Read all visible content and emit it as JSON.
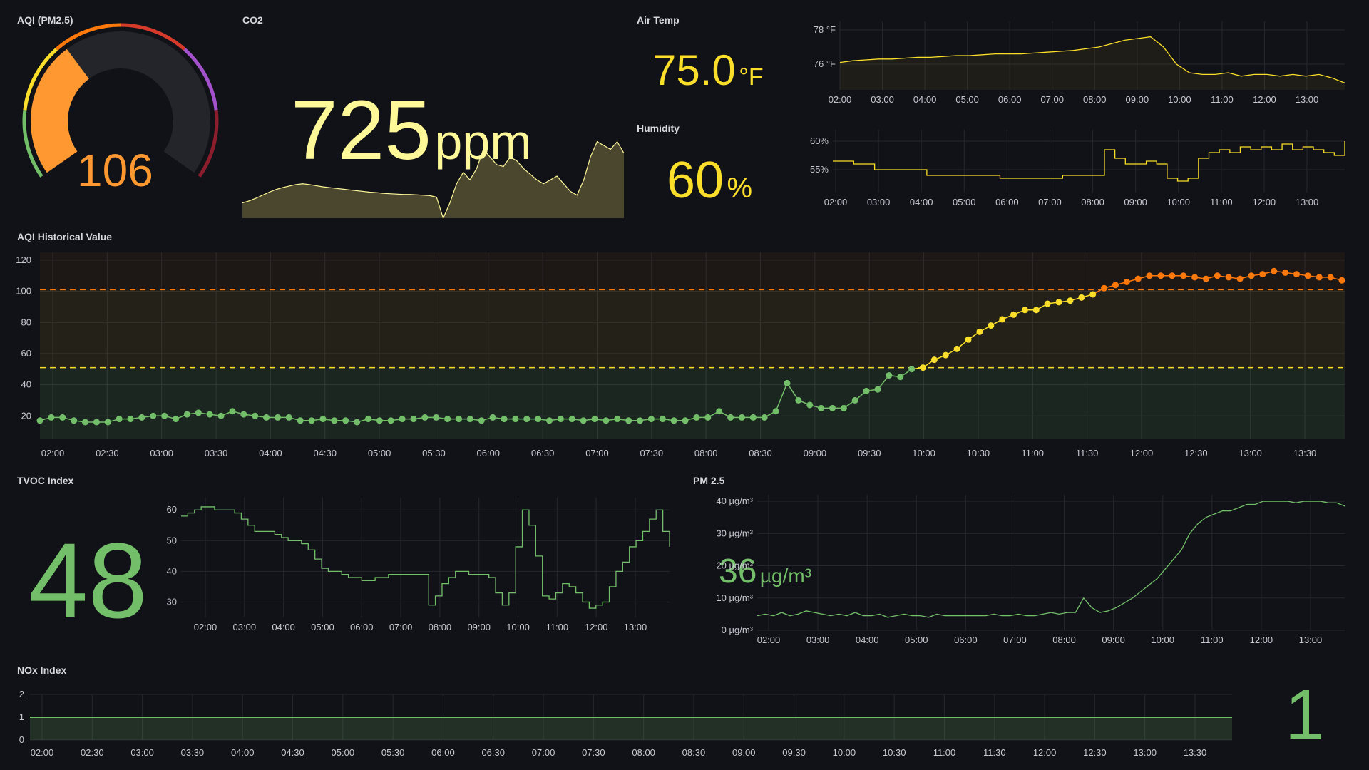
{
  "colors": {
    "bg": "#111217",
    "green": "#73bf69",
    "yellow": "#fade2a",
    "orange": "#ff780a",
    "red": "#f2495c",
    "purple": "#a352cc",
    "darkred": "#8c1d2c",
    "co2": "#fff899",
    "co2_fill": "#4a472e"
  },
  "aqi_gauge": {
    "title": "AQI (PM2.5)",
    "value": "106",
    "value_num": 106,
    "min": 0,
    "max": 300,
    "bands": [
      {
        "to": 50,
        "color": "#73bf69"
      },
      {
        "to": 100,
        "color": "#fade2a"
      },
      {
        "to": 150,
        "color": "#ff780a"
      },
      {
        "to": 200,
        "color": "#d63a2a"
      },
      {
        "to": 250,
        "color": "#a352cc"
      },
      {
        "to": 300,
        "color": "#8c1d2c"
      }
    ]
  },
  "co2": {
    "title": "CO2",
    "value": "725",
    "unit": "ppm",
    "spark": [
      640,
      645,
      652,
      660,
      668,
      675,
      680,
      684,
      688,
      690,
      688,
      685,
      682,
      680,
      678,
      676,
      674,
      672,
      670,
      668,
      667,
      665,
      664,
      663,
      662,
      662,
      661,
      660,
      659,
      655,
      600,
      640,
      690,
      720,
      700,
      730,
      780,
      760,
      740,
      735,
      760,
      750,
      730,
      715,
      700,
      690,
      700,
      710,
      690,
      670,
      660,
      700,
      760,
      800,
      790,
      780,
      800,
      770
    ]
  },
  "air_temp": {
    "title": "Air Temp",
    "value": "75.0",
    "unit": "°F"
  },
  "humidity": {
    "title": "Humidity",
    "value": "60",
    "unit": "%"
  },
  "temp_chart": {
    "y_ticks": [
      "78 °F",
      "76 °F"
    ],
    "x_ticks": [
      "02:00",
      "03:00",
      "04:00",
      "05:00",
      "06:00",
      "07:00",
      "08:00",
      "09:00",
      "10:00",
      "11:00",
      "12:00",
      "13:00"
    ],
    "ylim": [
      74.5,
      78.5
    ],
    "values": [
      76.1,
      76.2,
      76.25,
      76.3,
      76.3,
      76.35,
      76.4,
      76.4,
      76.45,
      76.5,
      76.5,
      76.55,
      76.6,
      76.6,
      76.6,
      76.65,
      76.7,
      76.75,
      76.8,
      76.9,
      77.0,
      77.2,
      77.4,
      77.5,
      77.6,
      77.0,
      76.0,
      75.5,
      75.4,
      75.4,
      75.5,
      75.3,
      75.4,
      75.4,
      75.3,
      75.4,
      75.3,
      75.4,
      75.2,
      74.9
    ]
  },
  "hum_chart": {
    "y_ticks": [
      "60%",
      "55%"
    ],
    "x_ticks": [
      "02:00",
      "03:00",
      "04:00",
      "05:00",
      "06:00",
      "07:00",
      "08:00",
      "09:00",
      "10:00",
      "11:00",
      "12:00",
      "13:00"
    ],
    "ylim": [
      51,
      62
    ],
    "values": [
      56.5,
      56.5,
      56,
      56,
      55,
      55,
      55,
      55,
      55,
      54,
      54,
      54,
      54,
      54,
      54,
      54,
      53.5,
      53.5,
      53.5,
      53.5,
      53.5,
      53.5,
      54,
      54,
      54,
      54,
      58.5,
      57,
      56,
      56,
      56.5,
      56,
      53.5,
      53,
      53.5,
      57,
      58,
      58.5,
      58,
      59,
      58.5,
      59,
      58.5,
      59.5,
      58.5,
      59,
      58.5,
      58,
      57.5,
      60
    ]
  },
  "aqi_history": {
    "title": "AQI Historical Value",
    "y_ticks": [
      "120",
      "100",
      "80",
      "60",
      "40",
      "20"
    ],
    "x_ticks": [
      "02:00",
      "02:30",
      "03:00",
      "03:30",
      "04:00",
      "04:30",
      "05:00",
      "05:30",
      "06:00",
      "06:30",
      "07:00",
      "07:30",
      "08:00",
      "08:30",
      "09:00",
      "09:30",
      "10:00",
      "10:30",
      "11:00",
      "11:30",
      "12:00",
      "12:30",
      "13:00",
      "13:30"
    ],
    "ylim": [
      5,
      125
    ],
    "threshold_orange": 101,
    "threshold_yellow": 51,
    "values": [
      17,
      19,
      19,
      17,
      16,
      16,
      16,
      18,
      18,
      19,
      20,
      20,
      18,
      21,
      22,
      21,
      20,
      23,
      21,
      20,
      19,
      19,
      19,
      17,
      17,
      18,
      17,
      17,
      16,
      18,
      17,
      17,
      18,
      18,
      19,
      19,
      18,
      18,
      18,
      17,
      19,
      18,
      18,
      18,
      18,
      17,
      18,
      18,
      17,
      18,
      17,
      18,
      17,
      17,
      18,
      18,
      17,
      17,
      19,
      19,
      23,
      19,
      19,
      19,
      19,
      23,
      41,
      30,
      27,
      25,
      25,
      25,
      30,
      36,
      37,
      46,
      45,
      50,
      51,
      56,
      59,
      63,
      69,
      74,
      78,
      82,
      85,
      88,
      88,
      92,
      93,
      94,
      96,
      98,
      102,
      104,
      106,
      108,
      110,
      110,
      110,
      110,
      109,
      108,
      110,
      109,
      108,
      110,
      111,
      113,
      112,
      111,
      110,
      109,
      109,
      107
    ]
  },
  "tvoc": {
    "title": "TVOC Index",
    "value": "48",
    "y_ticks": [
      "60",
      "50",
      "40",
      "30"
    ],
    "x_ticks": [
      "02:00",
      "03:00",
      "04:00",
      "05:00",
      "06:00",
      "07:00",
      "08:00",
      "09:00",
      "10:00",
      "11:00",
      "12:00",
      "13:00"
    ],
    "ylim": [
      25,
      64
    ],
    "values": [
      58,
      59,
      60,
      61,
      61,
      60,
      60,
      60,
      59,
      57,
      55,
      53,
      53,
      53,
      52,
      51,
      50,
      50,
      49,
      47,
      44,
      41,
      40,
      40,
      39,
      38,
      38,
      37,
      37,
      38,
      38,
      39,
      39,
      39,
      39,
      39,
      39,
      29,
      32,
      36,
      38,
      40,
      40,
      39,
      39,
      39,
      38,
      33,
      29,
      33,
      48,
      60,
      55,
      45,
      32,
      31,
      33,
      36,
      35,
      33,
      30,
      28,
      29,
      30,
      35,
      40,
      43,
      48,
      50,
      53,
      57,
      60,
      53,
      48
    ]
  },
  "pm25": {
    "title": "PM 2.5",
    "value": "36",
    "unit": "µg/m³",
    "y_ticks": [
      "40 µg/m³",
      "30 µg/m³",
      "20 µg/m³",
      "10 µg/m³",
      "0 µg/m³"
    ],
    "x_ticks": [
      "02:00",
      "03:00",
      "04:00",
      "05:00",
      "06:00",
      "07:00",
      "08:00",
      "09:00",
      "10:00",
      "11:00",
      "12:00",
      "13:00"
    ],
    "ylim": [
      0,
      42
    ],
    "values": [
      4.5,
      5,
      4.5,
      5.5,
      4.5,
      5,
      6,
      5.5,
      5,
      4.5,
      5,
      4.5,
      5.5,
      4.5,
      4.5,
      5,
      4,
      4.5,
      5,
      4.5,
      4.5,
      4,
      5,
      4.5,
      4.5,
      4.5,
      4.5,
      4.5,
      4.5,
      5,
      4.5,
      4.5,
      5,
      4.5,
      4.5,
      5,
      5.5,
      5,
      5.5,
      5.5,
      10,
      7,
      5.5,
      6,
      7,
      8.5,
      10,
      12,
      14,
      16,
      19,
      22,
      25,
      30,
      33,
      35,
      36,
      37,
      37,
      38,
      39,
      39,
      40,
      40,
      40,
      40,
      39.5,
      40,
      40,
      40,
      39.5,
      39.5,
      38.5
    ]
  },
  "nox": {
    "title": "NOx Index",
    "value": "1",
    "y_ticks": [
      "2",
      "1",
      "0"
    ],
    "x_ticks": [
      "02:00",
      "02:30",
      "03:00",
      "03:30",
      "04:00",
      "04:30",
      "05:00",
      "05:30",
      "06:00",
      "06:30",
      "07:00",
      "07:30",
      "08:00",
      "08:30",
      "09:00",
      "09:30",
      "10:00",
      "10:30",
      "11:00",
      "11:30",
      "12:00",
      "12:30",
      "13:00",
      "13:30"
    ],
    "ylim": [
      0,
      2
    ],
    "level": 1
  }
}
